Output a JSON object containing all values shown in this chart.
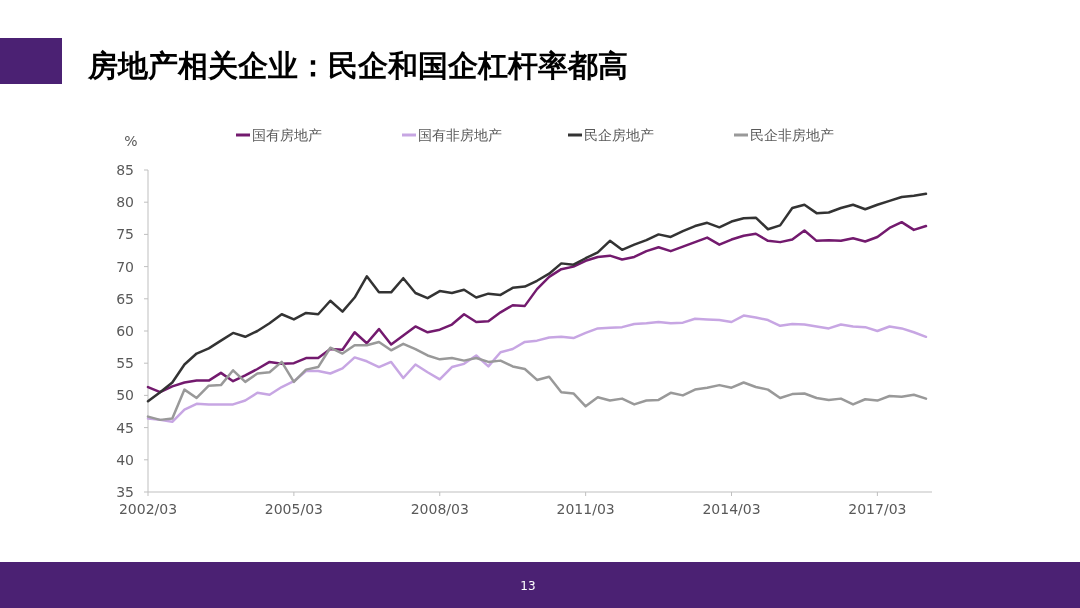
{
  "chart_data": {
    "type": "line",
    "title": "房地产相关企业：民企和国企杠杆率都高",
    "ylabel": "%",
    "categories": [
      "2002/03",
      null,
      null,
      null,
      null,
      null,
      null,
      null,
      null,
      null,
      null,
      null,
      "2005/03",
      null,
      null,
      null,
      null,
      null,
      null,
      null,
      null,
      null,
      null,
      null,
      "2008/03",
      null,
      null,
      null,
      null,
      null,
      null,
      null,
      null,
      null,
      null,
      null,
      "2011/03",
      null,
      null,
      null,
      null,
      null,
      null,
      null,
      null,
      null,
      null,
      null,
      "2014/03",
      null,
      null,
      null,
      null,
      null,
      null,
      null,
      null,
      null,
      null,
      null,
      "2017/03",
      null,
      null,
      null,
      null
    ],
    "series": [
      {
        "name": "国有房地产",
        "color": "#731a6e",
        "values": [
          51.3,
          50.5,
          51.4,
          52.0,
          52.3,
          52.3,
          53.5,
          52.2,
          53.1,
          54.1,
          55.2,
          54.9,
          55.0,
          55.8,
          55.8,
          57.2,
          57.1,
          59.8,
          58.1,
          60.3,
          57.9,
          59.3,
          60.7,
          59.8,
          60.2,
          61.0,
          62.6,
          61.4,
          61.5,
          62.9,
          64.0,
          63.9,
          66.5,
          68.4,
          69.6,
          70.0,
          70.9,
          71.5,
          71.7,
          71.1,
          71.5,
          72.4,
          73.0,
          72.4,
          73.1,
          73.8,
          74.5,
          73.4,
          74.2,
          74.8,
          75.1,
          74.0,
          73.8,
          74.2,
          75.6,
          74.0,
          74.1,
          74.0,
          74.4,
          73.9,
          74.6,
          76.0,
          76.9,
          75.7,
          76.3
        ]
      },
      {
        "name": "国有非房地产",
        "color": "#c7a6e3",
        "values": [
          46.4,
          46.2,
          45.9,
          47.8,
          48.7,
          48.6,
          48.6,
          48.6,
          49.2,
          50.4,
          50.1,
          51.3,
          52.2,
          53.8,
          53.8,
          53.4,
          54.2,
          55.9,
          55.3,
          54.4,
          55.2,
          52.7,
          54.8,
          53.6,
          52.5,
          54.4,
          54.9,
          56.2,
          54.5,
          56.7,
          57.2,
          58.3,
          58.5,
          59.0,
          59.1,
          58.9,
          59.7,
          60.4,
          60.5,
          60.6,
          61.1,
          61.2,
          61.4,
          61.2,
          61.3,
          61.9,
          61.8,
          61.7,
          61.4,
          62.4,
          62.1,
          61.7,
          60.8,
          61.1,
          61.0,
          60.7,
          60.4,
          61.0,
          60.7,
          60.6,
          60.0,
          60.7,
          60.4,
          59.8,
          59.1
        ]
      },
      {
        "name": "民企房地产",
        "color": "#333333",
        "values": [
          49.1,
          50.5,
          52.0,
          54.8,
          56.5,
          57.3,
          58.5,
          59.7,
          59.1,
          60.0,
          61.2,
          62.6,
          61.8,
          62.8,
          62.6,
          64.7,
          63.0,
          65.2,
          68.5,
          66.0,
          66.0,
          68.2,
          65.9,
          65.1,
          66.2,
          65.9,
          66.4,
          65.2,
          65.8,
          65.6,
          66.7,
          66.9,
          67.8,
          68.9,
          70.5,
          70.3,
          71.3,
          72.2,
          74.0,
          72.6,
          73.4,
          74.1,
          75.0,
          74.6,
          75.5,
          76.3,
          76.8,
          76.1,
          77.0,
          77.5,
          77.6,
          75.8,
          76.4,
          79.1,
          79.6,
          78.3,
          78.4,
          79.1,
          79.6,
          78.9,
          79.6,
          80.2,
          80.8,
          81.0,
          81.3
        ]
      },
      {
        "name": "民企非房地产",
        "color": "#999999",
        "values": [
          46.7,
          46.2,
          46.4,
          50.9,
          49.6,
          51.5,
          51.6,
          53.9,
          52.1,
          53.4,
          53.6,
          55.2,
          52.1,
          54.0,
          54.4,
          57.4,
          56.5,
          57.8,
          57.8,
          58.3,
          57.0,
          58.0,
          57.2,
          56.2,
          55.6,
          55.8,
          55.4,
          55.8,
          55.2,
          55.4,
          54.5,
          54.1,
          52.4,
          52.9,
          50.5,
          50.3,
          48.3,
          49.7,
          49.2,
          49.5,
          48.6,
          49.2,
          49.3,
          50.4,
          50.0,
          50.9,
          51.2,
          51.6,
          51.2,
          52.0,
          51.3,
          50.9,
          49.6,
          50.2,
          50.3,
          49.6,
          49.3,
          49.5,
          48.6,
          49.4,
          49.2,
          49.9,
          49.8,
          50.1,
          49.5
        ]
      }
    ],
    "ylim": [
      35,
      85
    ],
    "yticks": [
      35,
      40,
      45,
      50,
      55,
      60,
      65,
      70,
      75,
      80,
      85
    ],
    "legend": "top",
    "grid": false,
    "annotations": [
      "13"
    ]
  }
}
